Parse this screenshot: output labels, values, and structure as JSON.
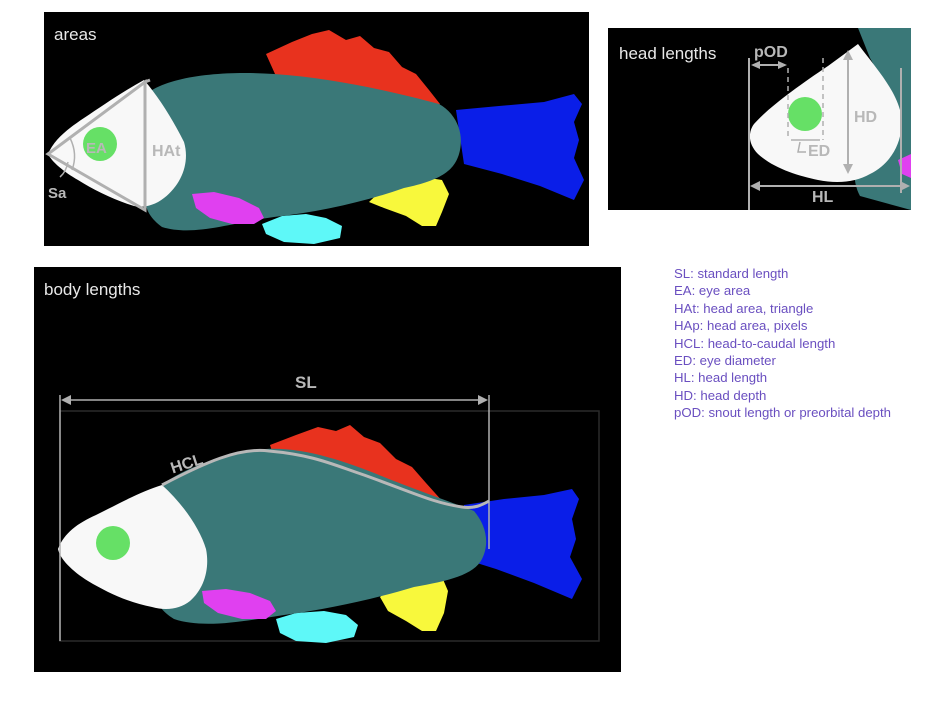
{
  "colors": {
    "background": "#000000",
    "body": "#3a7878",
    "head": "#f8f8f8",
    "eye": "#66e066",
    "dorsal_fin": "#e8321e",
    "caudal_fin": "#0a1ee8",
    "anal_fin": "#f8f83c",
    "pelvic_fin": "#e040f0",
    "pectoral_fin": "#5ef8f8",
    "annotation": "#b0b0b0",
    "legend_text": "#6a4fc0"
  },
  "panels": {
    "areas": {
      "title": "areas",
      "labels": {
        "eye_area": "EA",
        "head_area_triangle": "HAt",
        "snout_angle": "Sa"
      }
    },
    "head": {
      "title": "head lengths",
      "labels": {
        "preorbital": "pOD",
        "head_depth": "HD",
        "eye_diameter": "ED",
        "head_length": "HL"
      }
    },
    "body": {
      "title": "body lengths",
      "labels": {
        "standard_length": "SL",
        "head_to_caudal": "HCL"
      }
    }
  },
  "legend": [
    "SL: standard length",
    "EA: eye area",
    "HAt: head area, triangle",
    "HAp: head area, pixels",
    "HCL: head-to-caudal length",
    "ED: eye diameter",
    "HL: head length",
    "HD: head depth",
    "pOD: snout length or preorbital depth"
  ]
}
